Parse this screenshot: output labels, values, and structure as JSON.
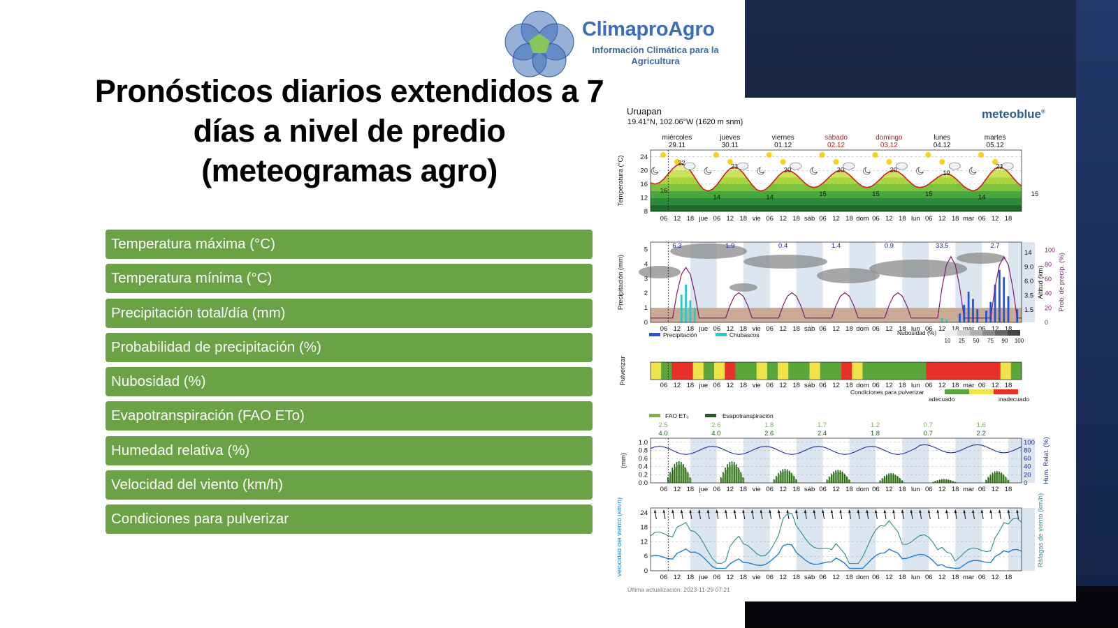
{
  "logo": {
    "name": "ClimaproAgro",
    "tagline": "Información Climática para la Agricultura",
    "colors": {
      "circle": "#3f6fb8",
      "pentagon": "#8cc65a",
      "text": "#3d6eb5"
    }
  },
  "title": "Pronósticos diarios extendidos a 7 días a nivel de predio (meteogramas agro)",
  "variables": [
    "Temperatura máxima (°C)",
    "Temperatura mínima (°C)",
    "Precipitación total/día (mm)",
    "Probabilidad de precipitación (%)",
    "Nubosidad (%)",
    "Evapotranspiración (FAO ETo)",
    "Humedad relativa (%)",
    "Velocidad del viento (km/h)",
    "Condiciones para pulverizar"
  ],
  "item_color": "#6aa245",
  "meteogram": {
    "location": "Uruapan",
    "coordinates": "19.41°N, 102.06°W (1620 m snm)",
    "brand": "meteoblue",
    "brand_mark": "®",
    "last_update": "Última actualización: 2023-11-29 07:21",
    "days": [
      {
        "name": "miércoles",
        "date": "29.11",
        "weekend": false
      },
      {
        "name": "jueves",
        "date": "30.11",
        "weekend": false
      },
      {
        "name": "viernes",
        "date": "01.12",
        "weekend": false
      },
      {
        "name": "sábado",
        "date": "02.12",
        "weekend": true
      },
      {
        "name": "domingo",
        "date": "03.12",
        "weekend": true
      },
      {
        "name": "lunes",
        "date": "04.12",
        "weekend": false
      },
      {
        "name": "martes",
        "date": "05.12",
        "weekend": false
      }
    ],
    "hour_ticks": [
      "06",
      "12",
      "18",
      "jue",
      "06",
      "12",
      "18",
      "vie",
      "06",
      "12",
      "18",
      "sáb",
      "06",
      "12",
      "18",
      "dom",
      "06",
      "12",
      "18",
      "lun",
      "06",
      "12",
      "18",
      "mar",
      "06",
      "12",
      "18"
    ],
    "temperature": {
      "ylabel": "Temperatura (°C)",
      "yticks": [
        8,
        12,
        16,
        20,
        24
      ],
      "ylim": [
        8,
        26
      ],
      "max_labels": [
        22,
        21,
        20,
        20,
        20,
        19,
        21
      ],
      "min_labels": [
        16,
        14,
        14,
        15,
        15,
        15,
        14,
        15
      ]
    },
    "precipitation": {
      "ylabel": "Precipitación (mm)",
      "yticks": [
        0,
        1,
        2,
        3,
        4,
        5
      ],
      "altitude_label": "Altitud (km)",
      "altitude_ticks": [
        "1.5",
        "3.5",
        "6.0",
        "9.0",
        "14"
      ],
      "prob_label": "Prob. de precip. (%)",
      "prob_ticks": [
        0,
        20,
        40,
        60,
        80,
        100
      ],
      "daily_totals": [
        "6.3",
        "1.9",
        "0.4",
        "1.4",
        "0.9",
        "33.5",
        "2.7"
      ],
      "legend": [
        "Precipitación",
        "Chubascos"
      ],
      "cloud_legend_title": "Nubosidad (%)",
      "cloud_legend_ticks": [
        "10",
        "25",
        "50",
        "75",
        "90",
        "100"
      ],
      "colors": {
        "precip": "#1f55d6",
        "showers": "#27c9c9",
        "probability": "#7a1a6e"
      }
    },
    "spray": {
      "ylabel": "Pulverizar",
      "legend_title": "Condiciones para pulverizar",
      "legend_good": "adecuado",
      "legend_bad": "inadecuado",
      "segments": [
        "Y",
        "G",
        "R",
        "R",
        "Y",
        "G",
        "Y",
        "R",
        "G",
        "G",
        "Y",
        "G",
        "Y",
        "G",
        "G",
        "Y",
        "G",
        "G",
        "R",
        "Y",
        "G",
        "G",
        "G",
        "G",
        "G",
        "G",
        "R",
        "R",
        "R",
        "R",
        "R",
        "R",
        "R",
        "Y",
        "G"
      ],
      "colors": {
        "G": "#5aa63a",
        "Y": "#f0e24a",
        "R": "#e8302b"
      }
    },
    "evapo": {
      "ylabel": "(mm)",
      "yticks": [
        "0.0",
        "0.2",
        "0.4",
        "0.6",
        "0.8",
        "1.0"
      ],
      "hum_label": "Hum. Relat. (%)",
      "hum_ticks": [
        0,
        20,
        40,
        60,
        80,
        100
      ],
      "legend": [
        "FAO ET₀",
        "Evapotranspiración"
      ],
      "fao_daily": [
        "2.5",
        "2.6",
        "1.8",
        "1.7",
        "1.2",
        "0.7",
        "1.6"
      ],
      "et_daily": [
        "4.0",
        "4.0",
        "2.6",
        "2.4",
        "1.8",
        "0.7",
        "2.2"
      ],
      "colors": {
        "fao": "#7cb342",
        "et": "#1b5e20",
        "humidity": "#1a2a9a"
      }
    },
    "wind": {
      "ylabel": "Velocidad del viento (km/h)",
      "gust_label": "Ráfagas de viento (km/h)",
      "yticks": [
        0,
        6,
        12,
        18,
        24
      ],
      "colors": {
        "speed": "#1a7fd4",
        "gusts": "#2a8a8a"
      }
    }
  }
}
